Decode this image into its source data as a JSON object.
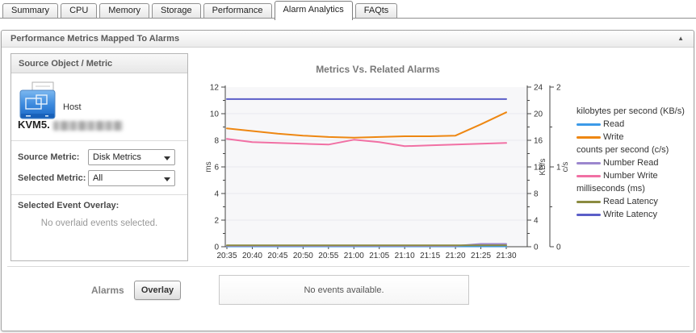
{
  "tabs": {
    "items": [
      {
        "label": "Summary",
        "active": false
      },
      {
        "label": "CPU",
        "active": false
      },
      {
        "label": "Memory",
        "active": false
      },
      {
        "label": "Storage",
        "active": false
      },
      {
        "label": "Performance",
        "active": false
      },
      {
        "label": "Alarm Analytics",
        "active": true
      },
      {
        "label": "FAQts",
        "active": false
      }
    ]
  },
  "panel": {
    "title": "Performance Metrics Mapped To Alarms",
    "collapse_icon": "▲"
  },
  "sidebar": {
    "header": "Source Object / Metric",
    "host_type_label": "Host",
    "host_name_prefix": "KVM5.",
    "host_name_redacted": true,
    "source_metric_label": "Source Metric:",
    "source_metric_value": "Disk Metrics",
    "selected_metric_label": "Selected Metric:",
    "selected_metric_value": "All",
    "event_overlay_label": "Selected Event Overlay:",
    "event_overlay_empty": "No overlaid events selected."
  },
  "alarms": {
    "label": "Alarms",
    "overlay_button": "Overlay",
    "no_events": "No events available."
  },
  "chart_data": {
    "type": "line",
    "title": "Metrics Vs. Related Alarms",
    "x": [
      "20:35",
      "20:40",
      "20:45",
      "20:50",
      "20:55",
      "21:00",
      "21:05",
      "21:10",
      "21:15",
      "21:20",
      "21:25",
      "21:30"
    ],
    "grid": "horizontal-faint",
    "axes": {
      "left": {
        "label": "ms",
        "min": 0,
        "max": 12,
        "major": 2,
        "minor": 1
      },
      "right1": {
        "label": "KB/s",
        "min": 0,
        "max": 24,
        "major": 4,
        "minor": 2
      },
      "right2": {
        "label": "c/s",
        "min": 0,
        "max": 2,
        "major": 1,
        "minor": 0.5
      }
    },
    "legend_groups": [
      {
        "label": "kilobytes per second (KB/s)",
        "items": [
          "Read",
          "Write"
        ]
      },
      {
        "label": "counts per second (c/s)",
        "items": [
          "Number Read",
          "Number Write"
        ]
      },
      {
        "label": "milliseconds (ms)",
        "items": [
          "Read Latency",
          "Write Latency"
        ]
      }
    ],
    "series": [
      {
        "name": "Read",
        "axis": "right1",
        "color": "#3c9ae8",
        "values": [
          0.05,
          0.05,
          0.05,
          0.05,
          0.05,
          0.05,
          0.05,
          0.05,
          0.05,
          0.05,
          0.05,
          0.05
        ]
      },
      {
        "name": "Number Read",
        "axis": "right2",
        "color": "#9c87ce",
        "values": [
          0.01,
          0.01,
          0.01,
          0.01,
          0.01,
          0.01,
          0.01,
          0.01,
          0.01,
          0.01,
          0.035,
          0.035
        ]
      },
      {
        "name": "Read Latency",
        "axis": "left",
        "color": "#8b8b40",
        "values": [
          0.1,
          0.1,
          0.1,
          0.1,
          0.1,
          0.1,
          0.1,
          0.1,
          0.1,
          0.1,
          0.1,
          0.1
        ]
      },
      {
        "name": "Number Write",
        "axis": "right2",
        "color": "#f170a4",
        "values": [
          1.35,
          1.31,
          1.3,
          1.29,
          1.28,
          1.34,
          1.31,
          1.26,
          1.27,
          1.28,
          1.29,
          1.3
        ]
      },
      {
        "name": "Write",
        "axis": "right1",
        "color": "#ee8712",
        "values": [
          17.8,
          17.4,
          17.0,
          16.7,
          16.5,
          16.4,
          16.5,
          16.6,
          16.6,
          16.7,
          18.4,
          20.2
        ]
      },
      {
        "name": "Write Latency",
        "axis": "left",
        "color": "#5b5ec8",
        "values": [
          11.1,
          11.1,
          11.1,
          11.1,
          11.1,
          11.1,
          11.1,
          11.1,
          11.1,
          11.1,
          11.1,
          11.1
        ]
      }
    ]
  }
}
